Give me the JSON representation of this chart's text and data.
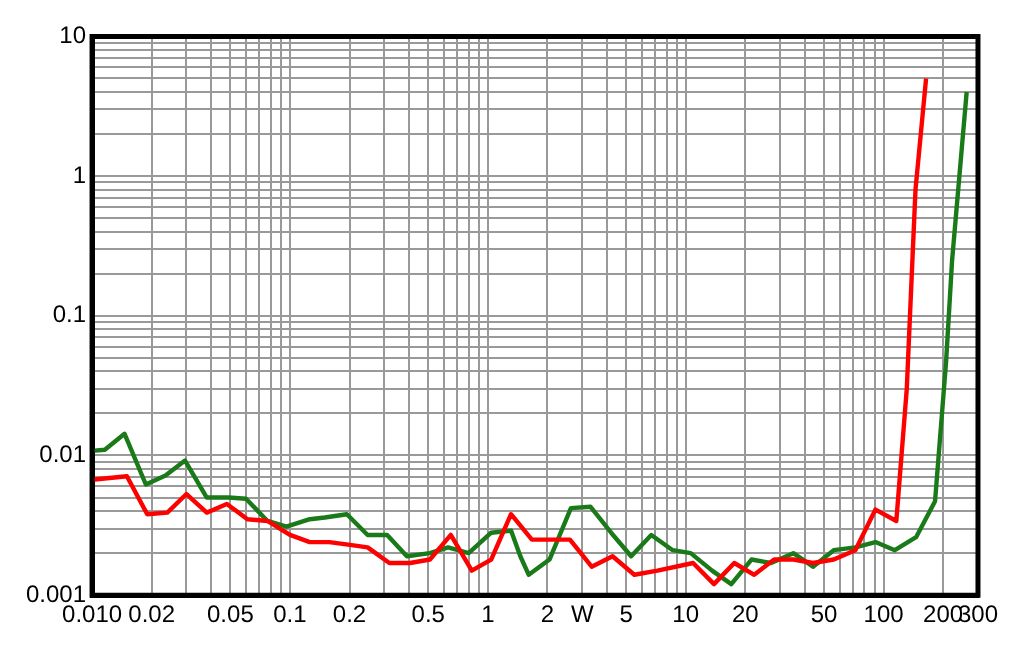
{
  "chart_data": {
    "type": "line",
    "log": "xy",
    "grid": true,
    "legend": false,
    "marker": "none",
    "line_style": "solid",
    "xlim": [
      0.01,
      300
    ],
    "ylim": [
      0.001,
      10
    ],
    "xticks": [
      {
        "value": 0.01,
        "label": "0.010"
      },
      0.02,
      {
        "value": 0.03,
        "label": null
      },
      {
        "value": 0.04,
        "label": null
      },
      0.05,
      {
        "value": 0.06,
        "label": null
      },
      {
        "value": 0.07,
        "label": null
      },
      {
        "value": 0.08,
        "label": null
      },
      {
        "value": 0.09,
        "label": null
      },
      0.1,
      0.2,
      {
        "value": 0.3,
        "label": null
      },
      {
        "value": 0.4,
        "label": null
      },
      0.5,
      {
        "value": 0.6,
        "label": null
      },
      {
        "value": 0.7,
        "label": null
      },
      {
        "value": 0.8,
        "label": null
      },
      {
        "value": 0.9,
        "label": null
      },
      1,
      2,
      {
        "value": 3,
        "label": "W"
      },
      {
        "value": 4,
        "label": null
      },
      5,
      {
        "value": 6,
        "label": null
      },
      {
        "value": 7,
        "label": null
      },
      {
        "value": 8,
        "label": null
      },
      {
        "value": 9,
        "label": null
      },
      10,
      20,
      {
        "value": 30,
        "label": null
      },
      {
        "value": 40,
        "label": null
      },
      50,
      {
        "value": 60,
        "label": null
      },
      {
        "value": 70,
        "label": null
      },
      {
        "value": 80,
        "label": null
      },
      {
        "value": 90,
        "label": null
      },
      100,
      200,
      300
    ],
    "yticks": [
      0.001,
      {
        "value": 0.002,
        "label": null
      },
      {
        "value": 0.003,
        "label": null
      },
      {
        "value": 0.004,
        "label": null
      },
      {
        "value": 0.005,
        "label": null
      },
      {
        "value": 0.006,
        "label": null
      },
      {
        "value": 0.007,
        "label": null
      },
      {
        "value": 0.008,
        "label": null
      },
      {
        "value": 0.009,
        "label": null
      },
      0.01,
      {
        "value": 0.02,
        "label": null
      },
      {
        "value": 0.03,
        "label": null
      },
      {
        "value": 0.04,
        "label": null
      },
      {
        "value": 0.05,
        "label": null
      },
      {
        "value": 0.06,
        "label": null
      },
      {
        "value": 0.07,
        "label": null
      },
      {
        "value": 0.08,
        "label": null
      },
      {
        "value": 0.09,
        "label": null
      },
      0.1,
      {
        "value": 0.2,
        "label": null
      },
      {
        "value": 0.3,
        "label": null
      },
      {
        "value": 0.4,
        "label": null
      },
      {
        "value": 0.5,
        "label": null
      },
      {
        "value": 0.6,
        "label": null
      },
      {
        "value": 0.7,
        "label": null
      },
      {
        "value": 0.8,
        "label": null
      },
      {
        "value": 0.9,
        "label": null
      },
      1,
      {
        "value": 2,
        "label": null
      },
      {
        "value": 3,
        "label": null
      },
      {
        "value": 4,
        "label": null
      },
      {
        "value": 5,
        "label": null
      },
      {
        "value": 6,
        "label": null
      },
      {
        "value": 7,
        "label": null
      },
      {
        "value": 8,
        "label": null
      },
      {
        "value": 9,
        "label": null
      },
      10
    ],
    "series": [
      {
        "color": "#ff0000",
        "x": [
          0.01,
          0.015,
          0.019,
          0.024,
          0.03,
          0.038,
          0.048,
          0.061,
          0.077,
          0.1,
          0.126,
          0.158,
          0.197,
          0.247,
          0.318,
          0.405,
          0.51,
          0.65,
          0.83,
          1.04,
          1.31,
          1.67,
          2.6,
          3.35,
          4.27,
          5.5,
          7.2,
          10.9,
          13.9,
          17.6,
          22.2,
          28,
          35,
          44,
          56,
          72,
          91,
          116,
          131,
          145,
          164
        ],
        "values": [
          0.0067,
          0.0071,
          0.0038,
          0.0039,
          0.0053,
          0.0039,
          0.0045,
          0.0035,
          0.0034,
          0.0027,
          0.0024,
          0.0024,
          0.0023,
          0.0022,
          0.0017,
          0.0017,
          0.0018,
          0.0027,
          0.0015,
          0.0018,
          0.0038,
          0.0025,
          0.0025,
          0.0016,
          0.0019,
          0.0014,
          0.0015,
          0.0017,
          0.0012,
          0.0017,
          0.0014,
          0.0018,
          0.0018,
          0.0017,
          0.0018,
          0.0021,
          0.0041,
          0.0034,
          0.03,
          0.8,
          5
        ]
      },
      {
        "color": "#1a7a1a",
        "x": [
          0.01,
          0.0116,
          0.0146,
          0.0187,
          0.0235,
          0.0295,
          0.038,
          0.049,
          0.06,
          0.077,
          0.096,
          0.126,
          0.15,
          0.194,
          0.247,
          0.31,
          0.39,
          0.51,
          0.63,
          0.8,
          1.04,
          1.31,
          1.46,
          1.61,
          2.05,
          2.63,
          3.3,
          4.2,
          5.3,
          6.7,
          8.6,
          10.6,
          13.6,
          17,
          21.5,
          27,
          35,
          44,
          56,
          72,
          91,
          114,
          146,
          182,
          207,
          222,
          263
        ],
        "values": [
          0.0108,
          0.011,
          0.0143,
          0.0062,
          0.0072,
          0.0092,
          0.005,
          0.005,
          0.0049,
          0.0034,
          0.0031,
          0.0035,
          0.0036,
          0.0038,
          0.0027,
          0.0027,
          0.0019,
          0.002,
          0.0022,
          0.002,
          0.0028,
          0.0029,
          0.0019,
          0.0014,
          0.0018,
          0.0042,
          0.0043,
          0.0028,
          0.0019,
          0.0027,
          0.0021,
          0.002,
          0.0015,
          0.0012,
          0.0018,
          0.0017,
          0.002,
          0.0016,
          0.0021,
          0.0022,
          0.0024,
          0.0021,
          0.0026,
          0.0047,
          0.047,
          0.25,
          4
        ]
      }
    ]
  }
}
